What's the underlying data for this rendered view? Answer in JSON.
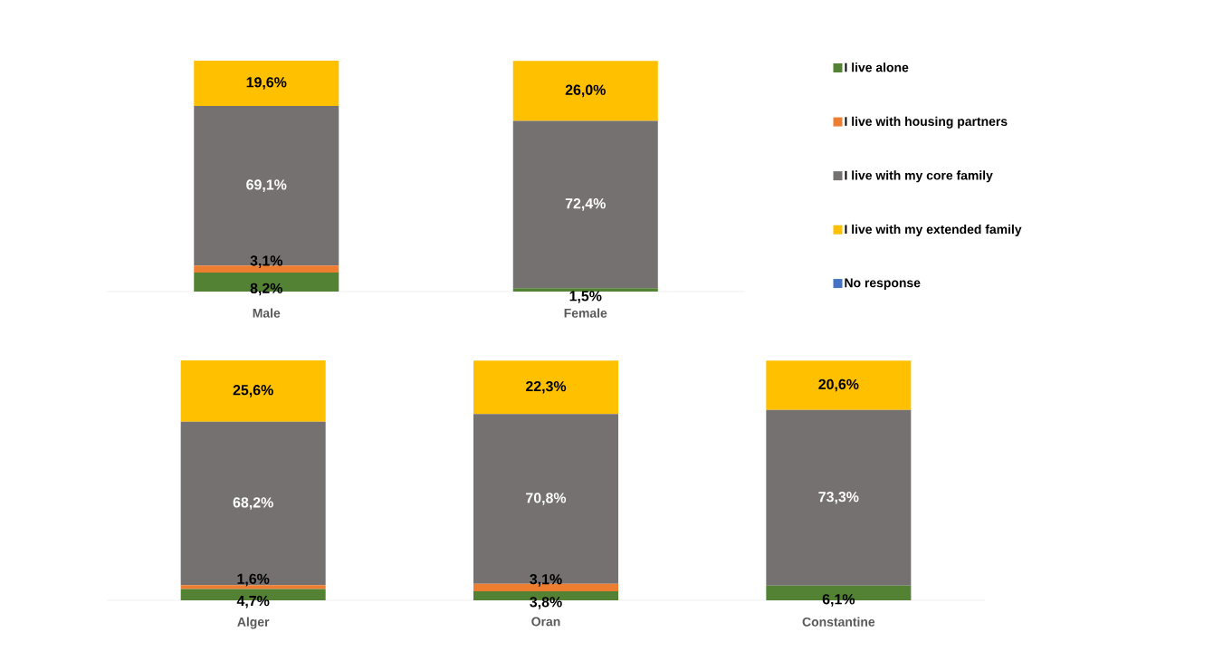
{
  "chart_data": [
    {
      "type": "bar",
      "stacked": true,
      "categories": [
        "Male",
        "Female"
      ],
      "legend": "right",
      "series": [
        {
          "name": "I live alone",
          "color": "#548235",
          "values": [
            8.2,
            1.5
          ],
          "value_labels": [
            "8,2%",
            "1,5%"
          ]
        },
        {
          "name": "I live with housing partners",
          "color": "#ed7d31",
          "values": [
            3.1,
            0
          ],
          "value_labels": [
            "3,1%",
            null
          ]
        },
        {
          "name": "I live with my core family",
          "color": "#767171",
          "values": [
            69.1,
            72.4
          ],
          "value_labels": [
            "69,1%",
            "72,4%"
          ]
        },
        {
          "name": "I live with my extended family",
          "color": "#ffc000",
          "values": [
            19.6,
            26.0
          ],
          "value_labels": [
            "19,6%",
            "26,0%"
          ]
        },
        {
          "name": "No response",
          "color": "#4472c4",
          "values": [
            0,
            0
          ],
          "value_labels": [
            null,
            null
          ]
        }
      ]
    },
    {
      "type": "bar",
      "stacked": true,
      "categories": [
        "Alger",
        "Oran",
        "Constantine"
      ],
      "series": [
        {
          "color": "#548235",
          "values": [
            4.7,
            3.8,
            6.1
          ],
          "value_labels": [
            "4,7%",
            "3,8%",
            "6,1%"
          ]
        },
        {
          "color": "#ed7d31",
          "values": [
            1.6,
            3.1,
            0
          ],
          "value_labels": [
            "1,6%",
            "3,1%",
            null
          ]
        },
        {
          "color": "#767171",
          "values": [
            68.2,
            70.8,
            73.3
          ],
          "value_labels": [
            "68,2%",
            "70,8%",
            "73,3%"
          ]
        },
        {
          "color": "#ffc000",
          "values": [
            25.6,
            22.3,
            20.6
          ],
          "value_labels": [
            "25,6%",
            "22,3%",
            "20,6%"
          ]
        },
        {
          "color": "#4472c4",
          "values": [
            0,
            0,
            0
          ],
          "value_labels": [
            null,
            null,
            null
          ]
        }
      ]
    }
  ]
}
